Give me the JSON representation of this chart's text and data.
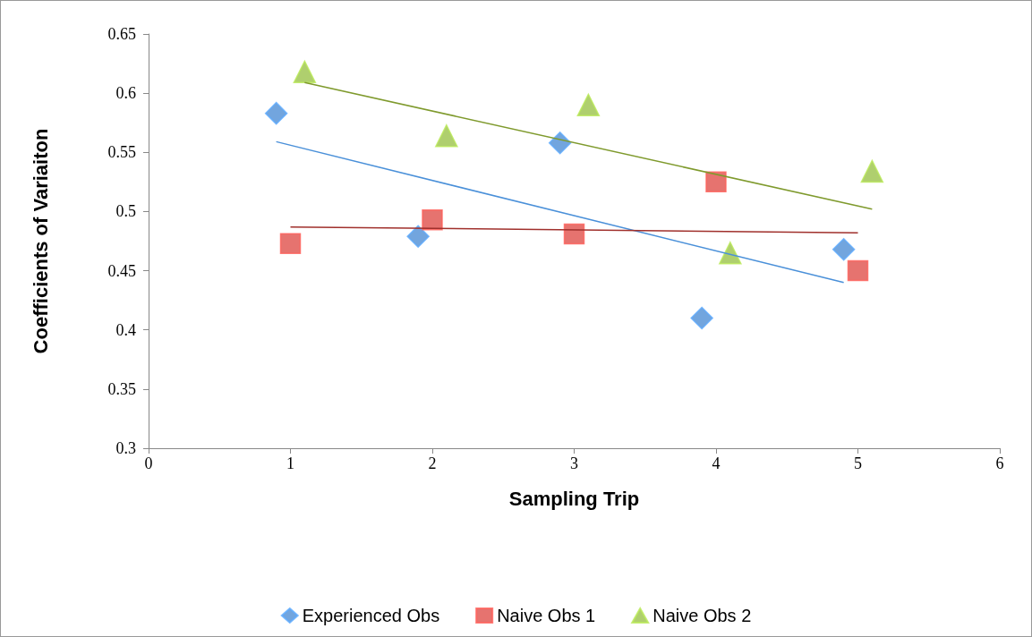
{
  "chart_data": {
    "type": "scatter",
    "xlabel": "Sampling Trip",
    "ylabel": "Coefficients of Variaiton",
    "xlim": [
      0,
      6
    ],
    "xticks": [
      0,
      1,
      2,
      3,
      4,
      5,
      6
    ],
    "ylim": [
      0.3,
      0.65
    ],
    "yticks": [
      0.3,
      0.35,
      0.4,
      0.45,
      0.5,
      0.55,
      0.6,
      0.65
    ],
    "grid": false,
    "legend": "bottom",
    "series": [
      {
        "name": "Experienced Obs",
        "color": "#4f8fd6",
        "marker": "diamond",
        "x": [
          0.9,
          1.9,
          2.9,
          3.9,
          4.9
        ],
        "values": [
          0.583,
          0.479,
          0.558,
          0.41,
          0.468
        ]
      },
      {
        "name": "Naive Obs 1",
        "color": "#e0504b",
        "marker": "square",
        "x": [
          1,
          2,
          3,
          4,
          5
        ],
        "values": [
          0.473,
          0.493,
          0.481,
          0.525,
          0.45
        ]
      },
      {
        "name": "Naive Obs 2",
        "color": "#9bc34a",
        "marker": "triangle",
        "x": [
          1.1,
          2.1,
          3.1,
          4.1,
          5.1
        ],
        "values": [
          0.618,
          0.564,
          0.59,
          0.465,
          0.534
        ]
      },
      {
        "type": "line",
        "color": "#4a90d9",
        "marker": "none",
        "x": [
          0.9,
          4.9
        ],
        "values": [
          0.559,
          0.44
        ]
      },
      {
        "type": "line",
        "color": "#a0302c",
        "marker": "none",
        "x": [
          1,
          5
        ],
        "values": [
          0.487,
          0.482
        ]
      },
      {
        "type": "line",
        "color": "#7f9a2d",
        "marker": "none",
        "x": [
          1.1,
          5.1
        ],
        "values": [
          0.609,
          0.502
        ]
      }
    ]
  }
}
